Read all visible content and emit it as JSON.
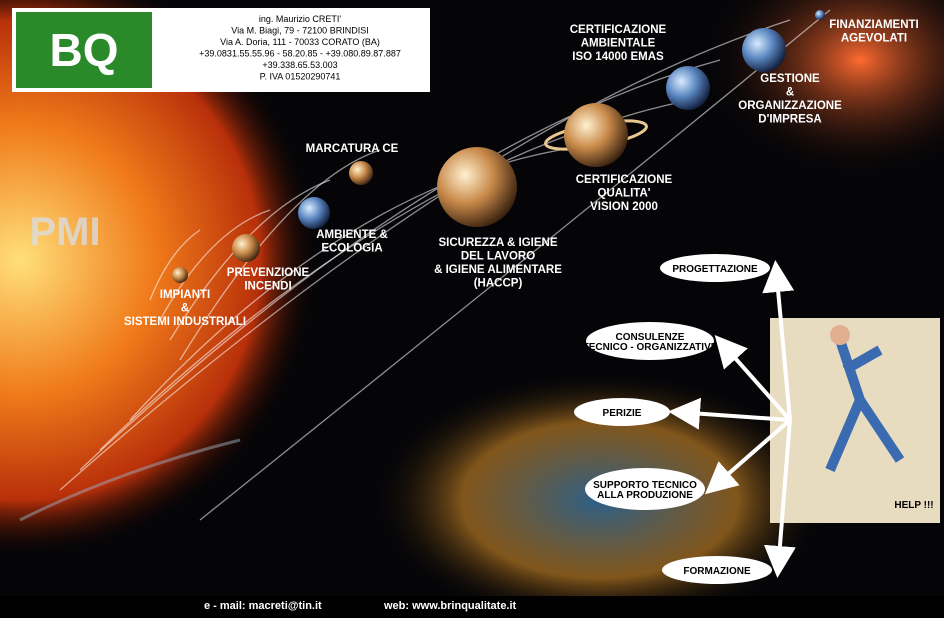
{
  "header": {
    "logo_text": "BQ",
    "lines": [
      "ing. Maurizio CRETI'",
      "Via M. Biagi, 79 - 72100 BRINDISI",
      "Via A. Doria, 111 - 70033 CORATO (BA)",
      "+39.0831.55.55.96 - 58.20.85 - +39.080.89.87.887",
      "+39.338.65.53.003",
      "P. IVA 01520290741"
    ]
  },
  "pmi_logo": "PMI",
  "planets": [
    {
      "lines": [
        "IMPIANTI",
        "&",
        "SISTEMI INDUSTRIALI"
      ]
    },
    {
      "lines": [
        "PREVENZIONE",
        "INCENDI"
      ]
    },
    {
      "lines": [
        "AMBIENTE &",
        "ECOLOGIA"
      ]
    },
    {
      "lines": [
        "MARCATURA CE"
      ]
    },
    {
      "lines": [
        "SICUREZZA & IGIENE",
        "DEL LAVORO",
        "& IGIENE ALIMENTARE",
        "(HACCP)"
      ]
    },
    {
      "lines": [
        "CERTIFICAZIONE",
        "QUALITA'",
        "VISION 2000"
      ]
    },
    {
      "lines": [
        "CERTIFICAZIONE",
        "AMBIENTALE",
        "ISO 14000 EMAS"
      ]
    },
    {
      "lines": [
        "GESTIONE",
        "&",
        "ORGANIZZAZIONE",
        "D'IMPRESA"
      ]
    },
    {
      "lines": [
        "FINANZIAMENTI",
        "AGEVOLATI"
      ]
    }
  ],
  "services": [
    {
      "lines": [
        "PROGETTAZIONE"
      ]
    },
    {
      "lines": [
        "CONSULENZE",
        "TECNICO - ORGANIZZATIVE"
      ]
    },
    {
      "lines": [
        "PERIZIE"
      ]
    },
    {
      "lines": [
        "SUPPORTO TECNICO",
        "ALLA PRODUZIONE"
      ]
    },
    {
      "lines": [
        "FORMAZIONE"
      ]
    }
  ],
  "help": "HELP !!!",
  "footer": {
    "email": "e - mail: macreti@tin.it",
    "web": "web: www.brinqualitate.it"
  }
}
